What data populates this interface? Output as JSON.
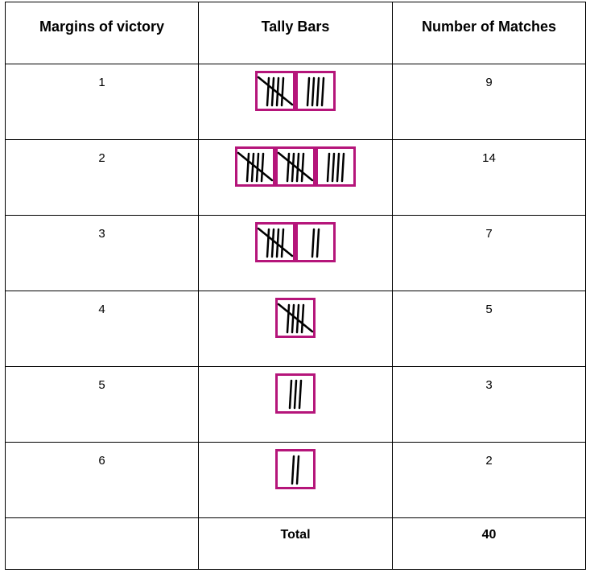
{
  "table": {
    "headers": [
      "Margins of victory",
      "Tally Bars",
      "Number of Matches"
    ],
    "rows": [
      {
        "margin": "1",
        "count": "9",
        "tally": 9
      },
      {
        "margin": "2",
        "count": "14",
        "tally": 14
      },
      {
        "margin": "3",
        "count": "7",
        "tally": 7
      },
      {
        "margin": "4",
        "count": "5",
        "tally": 5
      },
      {
        "margin": "5",
        "count": "3",
        "tally": 3
      },
      {
        "margin": "6",
        "count": "2",
        "tally": 2
      }
    ],
    "total": {
      "label": "Total",
      "value": "40"
    }
  },
  "colors": {
    "tally_box_border": "#b5157a",
    "tally_stroke": "#000000"
  }
}
